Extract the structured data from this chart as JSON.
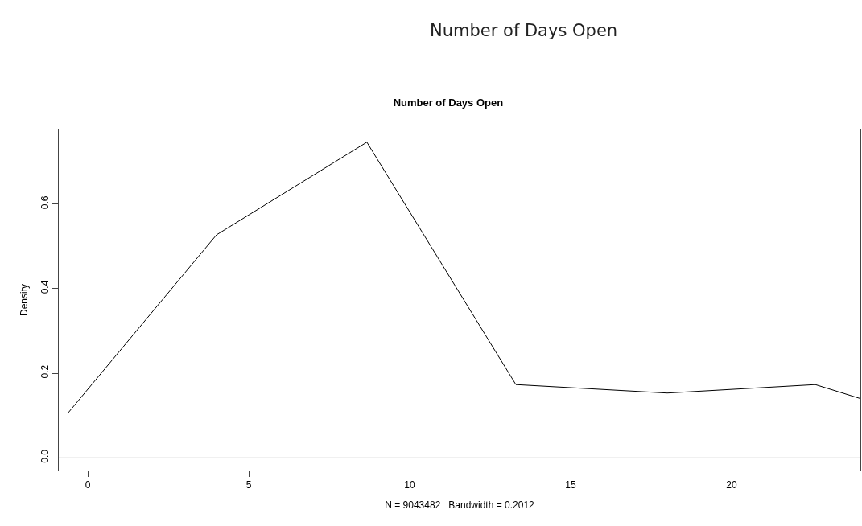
{
  "chart_data": {
    "type": "line",
    "title": "Number of Days Open",
    "subtitle": "Number of Days Open",
    "xlabel": "N = 9043482   Bandwidth = 0.2012",
    "ylabel": "Density",
    "x": [
      -0.6,
      4.0,
      8.67,
      13.3,
      18.0,
      22.6,
      24.0
    ],
    "series": [
      {
        "color": "#000000",
        "values": [
          0.107,
          0.527,
          0.746,
          0.173,
          0.153,
          0.173,
          0.14
        ]
      }
    ],
    "xlim": [
      -0.9,
      24.0
    ],
    "xticks": [
      0,
      5,
      10,
      15,
      20
    ],
    "ylim": [
      -0.03,
      0.776
    ],
    "yticks": [
      {
        "value": 0,
        "label": "0.0"
      },
      {
        "value": 0.2,
        "label": "0.2"
      },
      {
        "value": 0.4,
        "label": "0.4"
      },
      {
        "value": 0.6,
        "label": "0.6"
      }
    ],
    "ref_lines": [
      {
        "axis": "y",
        "value": 0,
        "color": "#c8c8c8"
      }
    ],
    "grid": false,
    "marker": "none",
    "line_style": "solid"
  }
}
